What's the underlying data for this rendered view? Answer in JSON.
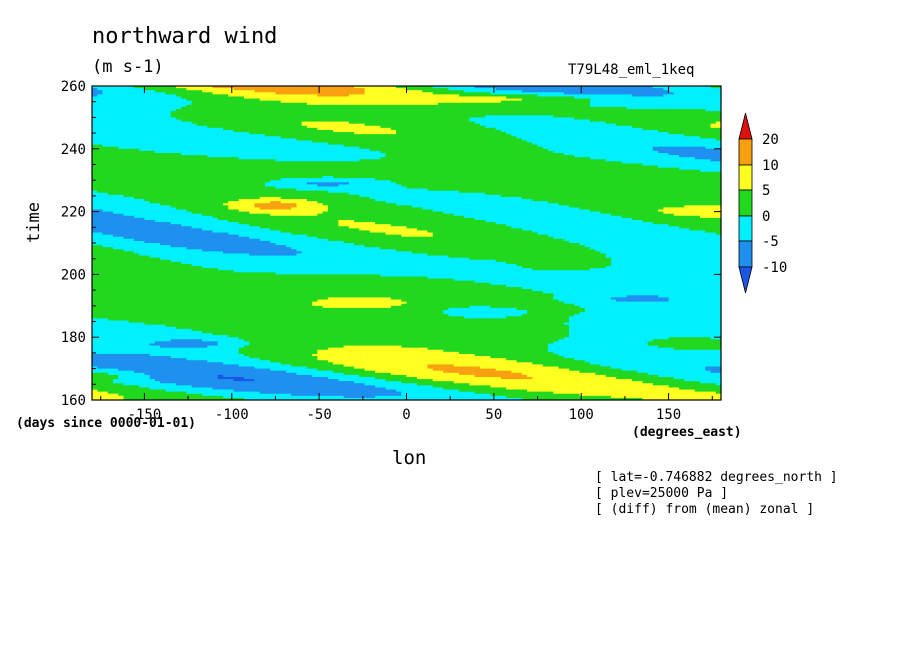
{
  "chart_data": {
    "type": "heatmap",
    "title": "northward wind",
    "units": "(m s-1)",
    "model": "T79L48_eml_1keq",
    "xlabel": "lon",
    "ylabel": "time",
    "x_units_label": "(degrees_east)",
    "y_units_label": "(days since 0000-01-01)",
    "xlim": [
      -180,
      180
    ],
    "ylim": [
      160,
      260
    ],
    "x_ticks": [
      "-150",
      "-100",
      "-50",
      "0",
      "50",
      "100",
      "150"
    ],
    "y_ticks": [
      "160",
      "180",
      "200",
      "220",
      "240",
      "260"
    ],
    "x_tick_values": [
      -150,
      -100,
      -50,
      0,
      50,
      100,
      150
    ],
    "y_tick_values": [
      160,
      180,
      200,
      220,
      240,
      260
    ],
    "colorbar": {
      "labels": [
        "20",
        "10",
        "5",
        "0",
        "-5",
        "-10"
      ],
      "levels": [
        -10,
        -5,
        0,
        5,
        10,
        20
      ],
      "colors": [
        "#1a57e8",
        "#1e90f0",
        "#00f0ff",
        "#22d81e",
        "#ffff20",
        "#f8a010",
        "#e01010"
      ]
    },
    "info": [
      "[ lat=-0.746882 degrees_north ]",
      "[ plev=25000 Pa ]",
      "[ (diff) from (mean) zonal ]"
    ]
  }
}
